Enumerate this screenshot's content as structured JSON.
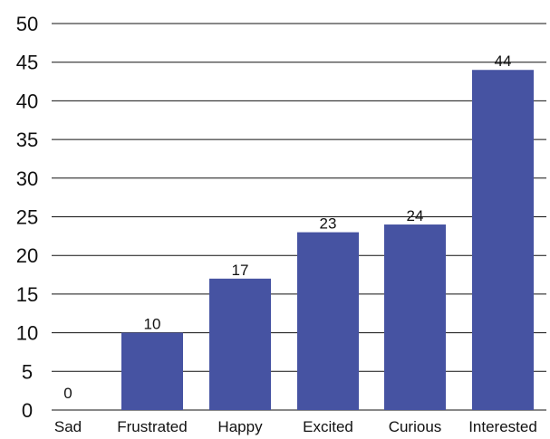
{
  "chart_data": {
    "type": "bar",
    "title": "",
    "xlabel": "",
    "ylabel": "",
    "categories": [
      "Sad",
      "Frustrated",
      "Happy",
      "Excited",
      "Curious",
      "Interested"
    ],
    "values": [
      0,
      10,
      17,
      23,
      24,
      44
    ],
    "data_labels": [
      "0",
      "10",
      "17",
      "23",
      "24",
      "44"
    ],
    "ylim": [
      0,
      50
    ],
    "yticks": [
      0,
      5,
      10,
      15,
      20,
      25,
      30,
      35,
      40,
      45,
      50
    ],
    "ytick_labels": [
      "0",
      "5",
      "10",
      "15",
      "20",
      "25",
      "30",
      "35",
      "40",
      "45",
      "50"
    ],
    "grid": true,
    "legend": "none",
    "bar_color": "#4653a2",
    "grid_color": "#111111"
  }
}
